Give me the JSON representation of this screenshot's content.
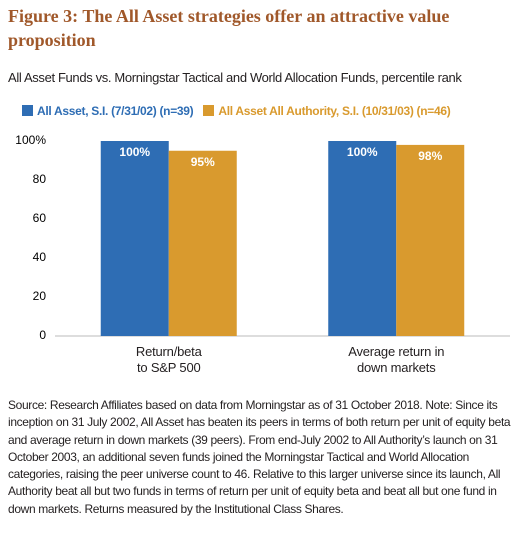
{
  "chart_data": {
    "type": "bar",
    "title": "Figure 3: The All Asset strategies offer an attractive value proposition",
    "subtitle": "All Asset Funds vs. Morningstar Tactical and World Allocation Funds, percentile rank",
    "categories": [
      "Return/beta\nto S&P 500",
      "Average return in\ndown markets"
    ],
    "series": [
      {
        "name": "All Asset, S.I. (7/31/02) (n=39)",
        "color": "#2e6db4",
        "values": [
          100,
          100
        ],
        "value_labels": [
          "100%",
          "100%"
        ]
      },
      {
        "name": "All Asset All Authority, S.I. (10/31/03) (n=46)",
        "color": "#d99a2e",
        "values": [
          95,
          98
        ],
        "value_labels": [
          "95%",
          "98%"
        ]
      }
    ],
    "ylim": [
      0,
      100
    ],
    "yticks": [
      0,
      20,
      40,
      60,
      80,
      {
        "value": 100,
        "label": "100%"
      }
    ],
    "grid": false,
    "source": "Source: Research Affiliates based on data from Morningstar as of 31 October 2018. Note: Since its inception on 31 July 2002, All Asset has beaten its peers in terms of both return per unit of equity beta and average return in down markets (39 peers). From end-July 2002 to All Authority’s launch on 31 October 2003, an additional seven funds joined the Morningstar Tactical and World Allocation categories, raising the peer universe count to 46. Relative to this larger universe since its launch, All Authority beat all but two funds in terms of return per unit of equity beta and beat all but one fund in down markets. Returns measured by the Institutional Class Shares."
  }
}
